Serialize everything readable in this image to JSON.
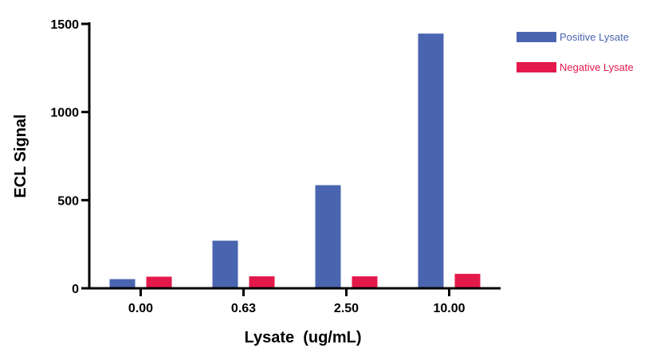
{
  "chart_data": {
    "type": "bar",
    "categories": [
      "0.00",
      "0.63",
      "2.50",
      "10.00"
    ],
    "series": [
      {
        "name": "Positive Lysate",
        "color": "#4a65b0",
        "values": [
          52,
          270,
          585,
          1445
        ]
      },
      {
        "name": "Negative Lysate",
        "color": "#e4194b",
        "values": [
          66,
          68,
          68,
          82
        ]
      }
    ],
    "xlabel": "Lysate  (ug/mL)",
    "ylabel": "ECL  Signal",
    "ylim": [
      0,
      1500
    ],
    "yticks": [
      "0",
      "500",
      "1000",
      "1500"
    ],
    "grid": false,
    "legend_position": "top-right"
  }
}
